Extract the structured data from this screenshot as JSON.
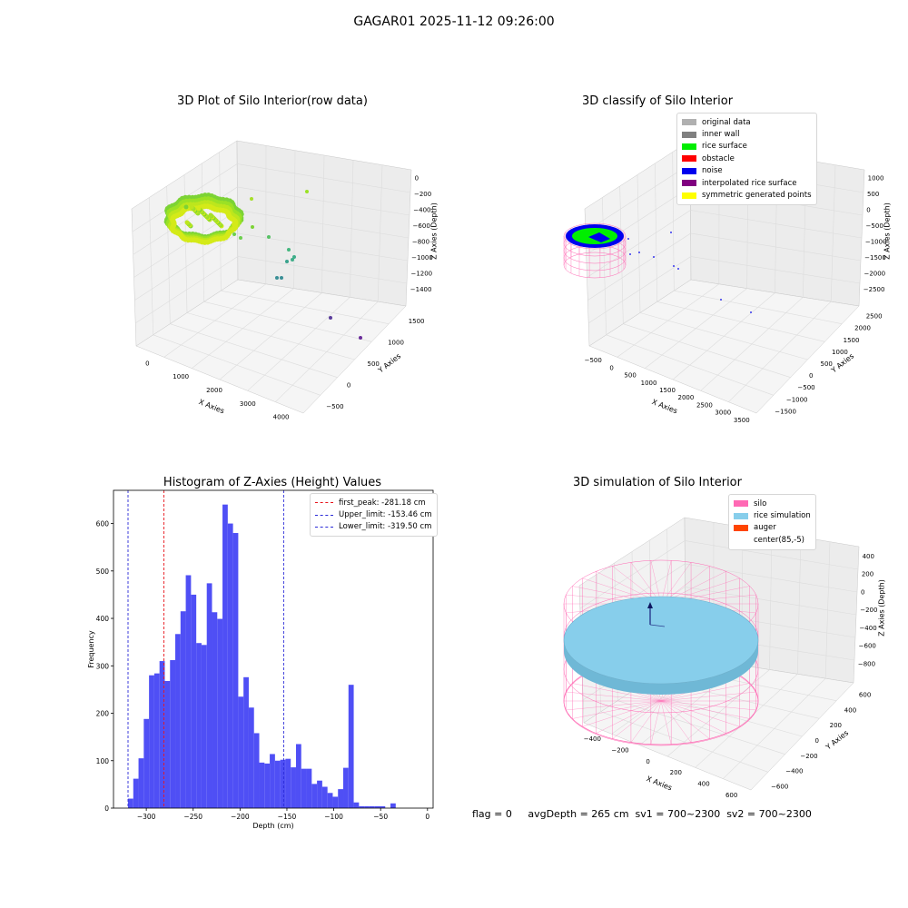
{
  "figure": {
    "suptitle": "GAGAR01 2025-11-12 09:26:00",
    "footer": "flag = 0     avgDepth = 265 cm  sv1 = 700~2300  sv2 = 700~2300"
  },
  "colors": {
    "hist_bar": "#4f4ff5",
    "first_peak": "#e8141b",
    "limits": "#2a2ad8",
    "silo": "#ff69b4",
    "rice_sim": "#87ceeb",
    "auger": "#ff4500"
  },
  "panels": {
    "p1": {
      "title": "3D Plot of Silo Interior(row data)",
      "xlabel": "X Axies",
      "ylabel": "Y Axies",
      "zlabel": "Z Axies (Depth)",
      "xticks": [
        "0",
        "1000",
        "2000",
        "3000",
        "4000"
      ],
      "yticks": [
        "−500",
        "0",
        "500",
        "1000",
        "1500"
      ],
      "zticks": [
        "0",
        "−200",
        "−400",
        "−600",
        "−800",
        "−1000",
        "−1200",
        "−1400"
      ]
    },
    "p2": {
      "title": "3D classify of Silo Interior",
      "xlabel": "X Axies",
      "ylabel": "Y Axies",
      "zlabel": "Z Axies (Depth)",
      "xticks": [
        "−500",
        "0",
        "500",
        "1000",
        "1500",
        "2000",
        "2500",
        "3000",
        "3500"
      ],
      "yticks": [
        "−1500",
        "−1000",
        "−500",
        "0",
        "500",
        "1000",
        "1500",
        "2000",
        "2500"
      ],
      "zticks": [
        "1000",
        "500",
        "0",
        "−500",
        "−1000",
        "−1500",
        "−2000",
        "−2500"
      ],
      "legend": [
        {
          "label": "original data",
          "color": "#b0b0b0"
        },
        {
          "label": "inner wall",
          "color": "#808080"
        },
        {
          "label": "rice surface",
          "color": "#00ee00"
        },
        {
          "label": "obstacle",
          "color": "#ff0000"
        },
        {
          "label": "noise",
          "color": "#0000ee"
        },
        {
          "label": "interpolated rice surface",
          "color": "#800080"
        },
        {
          "label": "symmetric generated points",
          "color": "#ffff00"
        }
      ]
    },
    "p4": {
      "title": "3D simulation of Silo Interior",
      "xlabel": "X Axies",
      "ylabel": "Y Axies",
      "zlabel": "Z Axies (Depth)",
      "xticks": [
        "−400",
        "−200",
        "0",
        "200",
        "400",
        "600"
      ],
      "yticks": [
        "−600",
        "−400",
        "−200",
        "0",
        "200",
        "400",
        "600"
      ],
      "zticks": [
        "400",
        "200",
        "0",
        "−200",
        "−400",
        "−600",
        "−800"
      ],
      "legend": [
        {
          "label": "silo",
          "color": "#ff69b4"
        },
        {
          "label": "rice simulation",
          "color": "#87ceeb"
        },
        {
          "label": "auger",
          "color": "#ff4500"
        },
        {
          "label": "center(85,-5)",
          "color": ""
        }
      ]
    }
  },
  "chart_data": {
    "type": "bar",
    "title": "Histogram of Z-Axies (Height) Values",
    "xlabel": "Depth (cm)",
    "ylabel": "Frequency",
    "xlim": [
      -335,
      6
    ],
    "ylim": [
      0,
      670
    ],
    "xticks": [
      -300,
      -250,
      -200,
      -150,
      -100,
      -50,
      0
    ],
    "yticks": [
      0,
      100,
      200,
      300,
      400,
      500,
      600
    ],
    "bins": {
      "start": -319.5,
      "width": 5.6,
      "counts": [
        20,
        62,
        105,
        188,
        280,
        284,
        310,
        268,
        312,
        367,
        415,
        491,
        450,
        348,
        344,
        474,
        413,
        399,
        640,
        600,
        580,
        235,
        276,
        212,
        158,
        96,
        94,
        114,
        100,
        102,
        104,
        86,
        135,
        83,
        83,
        51,
        58,
        45,
        32,
        24,
        40,
        85,
        260,
        12,
        4,
        4,
        4,
        4,
        4,
        0,
        10
      ]
    },
    "legend": [
      {
        "label": "first_peak: -281.18 cm",
        "value": -281.18,
        "color": "#e8141b"
      },
      {
        "label": "Upper_limit: -153.46 cm",
        "value": -153.46,
        "color": "#2a2ad8"
      },
      {
        "label": "Lower_limit: -319.50 cm",
        "value": -319.5,
        "color": "#2a2ad8"
      }
    ]
  }
}
